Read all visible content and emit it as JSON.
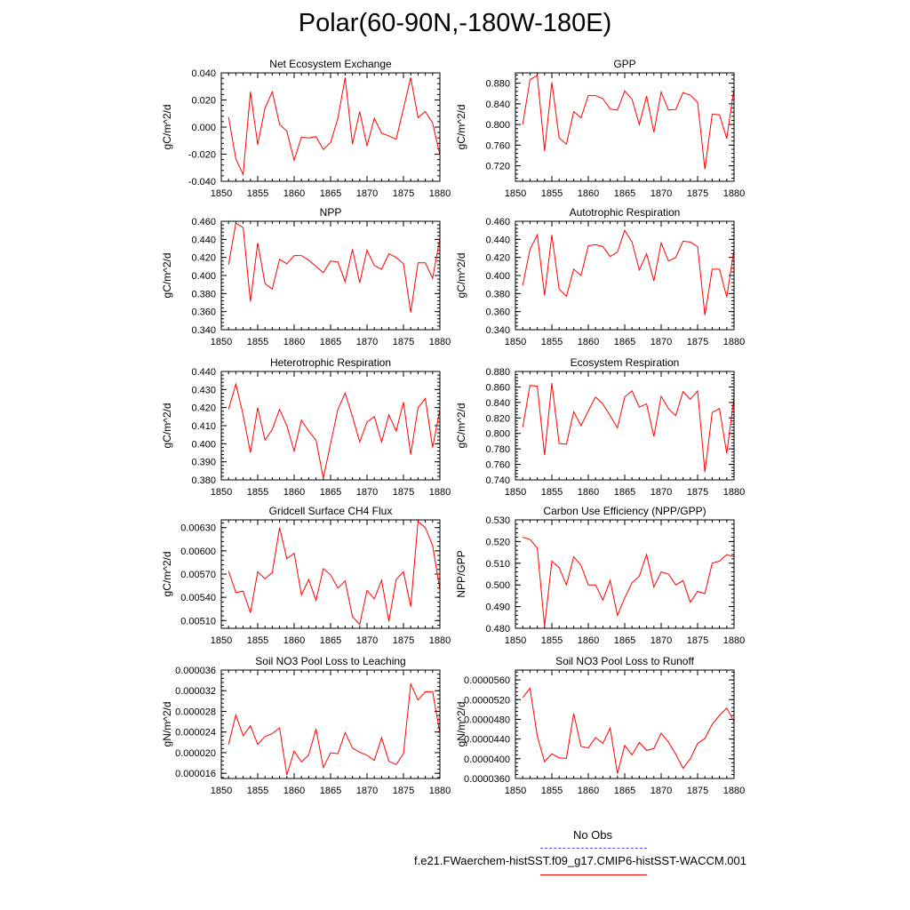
{
  "figure": {
    "title": "Polar(60-90N,-180W-180E)",
    "line_color": "#ff0000",
    "obs_color": "#4a4aff",
    "legend": {
      "obs_label": "No Obs",
      "case_label": "f.e21.FWaerchem-histSST.f09_g17.CMIP6-histSST-WACCM.001"
    }
  },
  "chart_data": [
    {
      "type": "line",
      "title": "Net Ecosystem Exchange",
      "ylabel": "gC/m^2/d",
      "xlim": [
        1850,
        1880
      ],
      "ylim": [
        -0.04,
        0.04
      ],
      "x_ticks": [
        "1850",
        "1855",
        "1860",
        "1865",
        "1870",
        "1875",
        "1880"
      ],
      "y_ticks": [
        "-0.040",
        "-0.020",
        "0.000",
        "0.020",
        "0.040"
      ],
      "x": [
        1851,
        1852,
        1853,
        1854,
        1855,
        1856,
        1857,
        1858,
        1859,
        1860,
        1861,
        1862,
        1863,
        1864,
        1865,
        1866,
        1867,
        1868,
        1869,
        1870,
        1871,
        1872,
        1873,
        1874,
        1875,
        1876,
        1877,
        1878,
        1879,
        1880
      ],
      "values": [
        0.0075,
        -0.0235,
        -0.035,
        0.026,
        -0.013,
        0.014,
        0.026,
        0.002,
        -0.003,
        -0.0245,
        -0.0075,
        -0.008,
        -0.007,
        -0.0165,
        -0.0115,
        0.0065,
        0.0365,
        -0.0125,
        0.0115,
        -0.014,
        0.0065,
        -0.0045,
        -0.0065,
        -0.009,
        0.0135,
        0.0365,
        0.007,
        0.0115,
        0.003,
        -0.0205
      ]
    },
    {
      "type": "line",
      "title": "GPP",
      "ylabel": "gC/m^2/d",
      "xlim": [
        1850,
        1880
      ],
      "ylim": [
        0.69,
        0.9
      ],
      "x_ticks": [
        "1850",
        "1855",
        "1860",
        "1865",
        "1870",
        "1875",
        "1880"
      ],
      "y_ticks": [
        "0.720",
        "0.760",
        "0.800",
        "0.840",
        "0.880"
      ],
      "x": [
        1851,
        1852,
        1853,
        1854,
        1855,
        1856,
        1857,
        1858,
        1859,
        1860,
        1861,
        1862,
        1863,
        1864,
        1865,
        1866,
        1867,
        1868,
        1869,
        1870,
        1871,
        1872,
        1873,
        1874,
        1875,
        1876,
        1877,
        1878,
        1879,
        1880
      ],
      "values": [
        0.8,
        0.887,
        0.895,
        0.749,
        0.882,
        0.774,
        0.762,
        0.825,
        0.813,
        0.856,
        0.856,
        0.85,
        0.83,
        0.828,
        0.865,
        0.849,
        0.8,
        0.855,
        0.785,
        0.863,
        0.828,
        0.829,
        0.862,
        0.857,
        0.843,
        0.713,
        0.82,
        0.819,
        0.773,
        0.87
      ]
    },
    {
      "type": "line",
      "title": "NPP",
      "ylabel": "gC/m^2/d",
      "xlim": [
        1850,
        1880
      ],
      "ylim": [
        0.34,
        0.46
      ],
      "x_ticks": [
        "1850",
        "1855",
        "1860",
        "1865",
        "1870",
        "1875",
        "1880"
      ],
      "y_ticks": [
        "0.340",
        "0.360",
        "0.380",
        "0.400",
        "0.420",
        "0.440",
        "0.460"
      ],
      "x": [
        1851,
        1852,
        1853,
        1854,
        1855,
        1856,
        1857,
        1858,
        1859,
        1860,
        1861,
        1862,
        1863,
        1864,
        1865,
        1866,
        1867,
        1868,
        1869,
        1870,
        1871,
        1872,
        1873,
        1874,
        1875,
        1876,
        1877,
        1878,
        1879,
        1880
      ],
      "values": [
        0.412,
        0.458,
        0.453,
        0.371,
        0.436,
        0.391,
        0.385,
        0.418,
        0.413,
        0.422,
        0.422,
        0.417,
        0.41,
        0.403,
        0.416,
        0.415,
        0.393,
        0.429,
        0.392,
        0.428,
        0.411,
        0.407,
        0.424,
        0.42,
        0.413,
        0.359,
        0.414,
        0.414,
        0.397,
        0.441
      ]
    },
    {
      "type": "line",
      "title": "Autotrophic Respiration",
      "ylabel": "gC/m^2/d",
      "xlim": [
        1850,
        1880
      ],
      "ylim": [
        0.34,
        0.46
      ],
      "x_ticks": [
        "1850",
        "1855",
        "1860",
        "1865",
        "1870",
        "1875",
        "1880"
      ],
      "y_ticks": [
        "0.340",
        "0.360",
        "0.380",
        "0.400",
        "0.420",
        "0.440",
        "0.460"
      ],
      "x": [
        1851,
        1852,
        1853,
        1854,
        1855,
        1856,
        1857,
        1858,
        1859,
        1860,
        1861,
        1862,
        1863,
        1864,
        1865,
        1866,
        1867,
        1868,
        1869,
        1870,
        1871,
        1872,
        1873,
        1874,
        1875,
        1876,
        1877,
        1878,
        1879,
        1880
      ],
      "values": [
        0.389,
        0.429,
        0.445,
        0.378,
        0.445,
        0.385,
        0.377,
        0.407,
        0.4,
        0.433,
        0.434,
        0.432,
        0.421,
        0.426,
        0.45,
        0.437,
        0.406,
        0.424,
        0.394,
        0.436,
        0.416,
        0.42,
        0.438,
        0.437,
        0.432,
        0.356,
        0.407,
        0.407,
        0.376,
        0.429
      ]
    },
    {
      "type": "line",
      "title": "Heterotrophic Respiration",
      "ylabel": "gC/m^2/d",
      "xlim": [
        1850,
        1880
      ],
      "ylim": [
        0.38,
        0.44
      ],
      "x_ticks": [
        "1850",
        "1855",
        "1860",
        "1865",
        "1870",
        "1875",
        "1880"
      ],
      "y_ticks": [
        "0.380",
        "0.390",
        "0.400",
        "0.410",
        "0.420",
        "0.430",
        "0.440"
      ],
      "x": [
        1851,
        1852,
        1853,
        1854,
        1855,
        1856,
        1857,
        1858,
        1859,
        1860,
        1861,
        1862,
        1863,
        1864,
        1865,
        1866,
        1867,
        1868,
        1869,
        1870,
        1871,
        1872,
        1873,
        1874,
        1875,
        1876,
        1877,
        1878,
        1879,
        1880
      ],
      "values": [
        0.419,
        0.433,
        0.416,
        0.395,
        0.42,
        0.402,
        0.408,
        0.419,
        0.41,
        0.396,
        0.413,
        0.407,
        0.402,
        0.381,
        0.4,
        0.419,
        0.428,
        0.415,
        0.401,
        0.412,
        0.415,
        0.401,
        0.416,
        0.407,
        0.423,
        0.394,
        0.42,
        0.425,
        0.398,
        0.419
      ]
    },
    {
      "type": "line",
      "title": "Ecosystem Respiration",
      "ylabel": "gC/m^2/d",
      "xlim": [
        1850,
        1880
      ],
      "ylim": [
        0.74,
        0.88
      ],
      "x_ticks": [
        "1850",
        "1855",
        "1860",
        "1865",
        "1870",
        "1875",
        "1880"
      ],
      "y_ticks": [
        "0.740",
        "0.760",
        "0.780",
        "0.800",
        "0.820",
        "0.840",
        "0.860",
        "0.880"
      ],
      "x": [
        1851,
        1852,
        1853,
        1854,
        1855,
        1856,
        1857,
        1858,
        1859,
        1860,
        1861,
        1862,
        1863,
        1864,
        1865,
        1866,
        1867,
        1868,
        1869,
        1870,
        1871,
        1872,
        1873,
        1874,
        1875,
        1876,
        1877,
        1878,
        1879,
        1880
      ],
      "values": [
        0.808,
        0.862,
        0.861,
        0.772,
        0.865,
        0.787,
        0.786,
        0.828,
        0.81,
        0.829,
        0.847,
        0.838,
        0.823,
        0.807,
        0.847,
        0.855,
        0.834,
        0.838,
        0.796,
        0.848,
        0.832,
        0.823,
        0.854,
        0.844,
        0.855,
        0.75,
        0.827,
        0.832,
        0.774,
        0.847
      ]
    },
    {
      "type": "line",
      "title": "Gridcell Surface CH4 Flux",
      "ylabel": "gC/m^2/d",
      "xlim": [
        1850,
        1880
      ],
      "ylim": [
        0.005,
        0.0064
      ],
      "x_ticks": [
        "1850",
        "1855",
        "1860",
        "1865",
        "1870",
        "1875",
        "1880"
      ],
      "y_ticks": [
        "0.00510",
        "0.00540",
        "0.00570",
        "0.00600",
        "0.00630"
      ],
      "x": [
        1851,
        1852,
        1853,
        1854,
        1855,
        1856,
        1857,
        1858,
        1859,
        1860,
        1861,
        1862,
        1863,
        1864,
        1865,
        1866,
        1867,
        1868,
        1869,
        1870,
        1871,
        1872,
        1873,
        1874,
        1875,
        1876,
        1877,
        1878,
        1879,
        1880
      ],
      "values": [
        0.00574,
        0.00546,
        0.00548,
        0.0052,
        0.00573,
        0.00564,
        0.00572,
        0.0063,
        0.0059,
        0.00597,
        0.00543,
        0.00563,
        0.00536,
        0.00577,
        0.00569,
        0.00552,
        0.00561,
        0.00515,
        0.00505,
        0.00549,
        0.00538,
        0.00562,
        0.00509,
        0.00563,
        0.00573,
        0.00528,
        0.00638,
        0.0063,
        0.00607,
        0.0055
      ]
    },
    {
      "type": "line",
      "title": "Carbon Use Efficiency (NPP/GPP)",
      "ylabel": "NPP/GPP",
      "xlim": [
        1850,
        1880
      ],
      "ylim": [
        0.48,
        0.53
      ],
      "x_ticks": [
        "1850",
        "1855",
        "1860",
        "1865",
        "1870",
        "1875",
        "1880"
      ],
      "y_ticks": [
        "0.480",
        "0.490",
        "0.500",
        "0.510",
        "0.520",
        "0.530"
      ],
      "x": [
        1851,
        1852,
        1853,
        1854,
        1855,
        1856,
        1857,
        1858,
        1859,
        1860,
        1861,
        1862,
        1863,
        1864,
        1865,
        1866,
        1867,
        1868,
        1869,
        1870,
        1871,
        1872,
        1873,
        1874,
        1875,
        1876,
        1877,
        1878,
        1879,
        1880
      ],
      "values": [
        0.522,
        0.521,
        0.517,
        0.481,
        0.511,
        0.508,
        0.5,
        0.513,
        0.509,
        0.5,
        0.5,
        0.493,
        0.502,
        0.486,
        0.494,
        0.501,
        0.504,
        0.514,
        0.499,
        0.506,
        0.505,
        0.5,
        0.502,
        0.492,
        0.497,
        0.496,
        0.51,
        0.511,
        0.514,
        0.513
      ]
    },
    {
      "type": "line",
      "title": "Soil NO3 Pool Loss to Leaching",
      "ylabel": "gN/m^2/d",
      "xlim": [
        1850,
        1880
      ],
      "ylim": [
        1.5e-05,
        3.6e-05
      ],
      "x_ticks": [
        "1850",
        "1855",
        "1860",
        "1865",
        "1870",
        "1875",
        "1880"
      ],
      "y_ticks": [
        "0.000016",
        "0.000020",
        "0.000024",
        "0.000028",
        "0.000032",
        "0.000036"
      ],
      "x": [
        1851,
        1852,
        1853,
        1854,
        1855,
        1856,
        1857,
        1858,
        1859,
        1860,
        1861,
        1862,
        1863,
        1864,
        1865,
        1866,
        1867,
        1868,
        1869,
        1870,
        1871,
        1872,
        1873,
        1874,
        1875,
        1876,
        1877,
        1878,
        1879,
        1880
      ],
      "values": [
        2.16e-05,
        2.73e-05,
        2.33e-05,
        2.52e-05,
        2.16e-05,
        2.31e-05,
        2.37e-05,
        2.48e-05,
        1.57e-05,
        2.03e-05,
        1.82e-05,
        1.96e-05,
        2.46e-05,
        1.71e-05,
        2e-05,
        1.98e-05,
        2.39e-05,
        2.09e-05,
        2.01e-05,
        1.95e-05,
        1.85e-05,
        2.29e-05,
        1.83e-05,
        1.77e-05,
        1.98e-05,
        3.33e-05,
        3.02e-05,
        3.18e-05,
        3.18e-05,
        2.38e-05
      ]
    },
    {
      "type": "line",
      "title": "Soil NO3 Pool Loss to Runoff",
      "ylabel": "gN/m^2/d",
      "xlim": [
        1850,
        1880
      ],
      "ylim": [
        3.6e-05,
        5.8e-05
      ],
      "x_ticks": [
        "1850",
        "1855",
        "1860",
        "1865",
        "1870",
        "1875",
        "1880"
      ],
      "y_ticks": [
        "0.0000360",
        "0.0000400",
        "0.0000440",
        "0.0000480",
        "0.0000520",
        "0.0000560"
      ],
      "x": [
        1851,
        1852,
        1853,
        1854,
        1855,
        1856,
        1857,
        1858,
        1859,
        1860,
        1861,
        1862,
        1863,
        1864,
        1865,
        1866,
        1867,
        1868,
        1869,
        1870,
        1871,
        1872,
        1873,
        1874,
        1875,
        1876,
        1877,
        1878,
        1879,
        1880
      ],
      "values": [
        5.24e-05,
        5.43e-05,
        4.46e-05,
        3.94e-05,
        4.1e-05,
        4.02e-05,
        4.01e-05,
        4.92e-05,
        4.25e-05,
        4.22e-05,
        4.43e-05,
        4.31e-05,
        4.62e-05,
        3.7e-05,
        4.27e-05,
        4.08e-05,
        4.33e-05,
        4.17e-05,
        4.21e-05,
        4.52e-05,
        4.34e-05,
        4.09e-05,
        3.81e-05,
        4e-05,
        4.31e-05,
        4.41e-05,
        4.7e-05,
        4.88e-05,
        5.03e-05,
        4.75e-05
      ]
    }
  ]
}
